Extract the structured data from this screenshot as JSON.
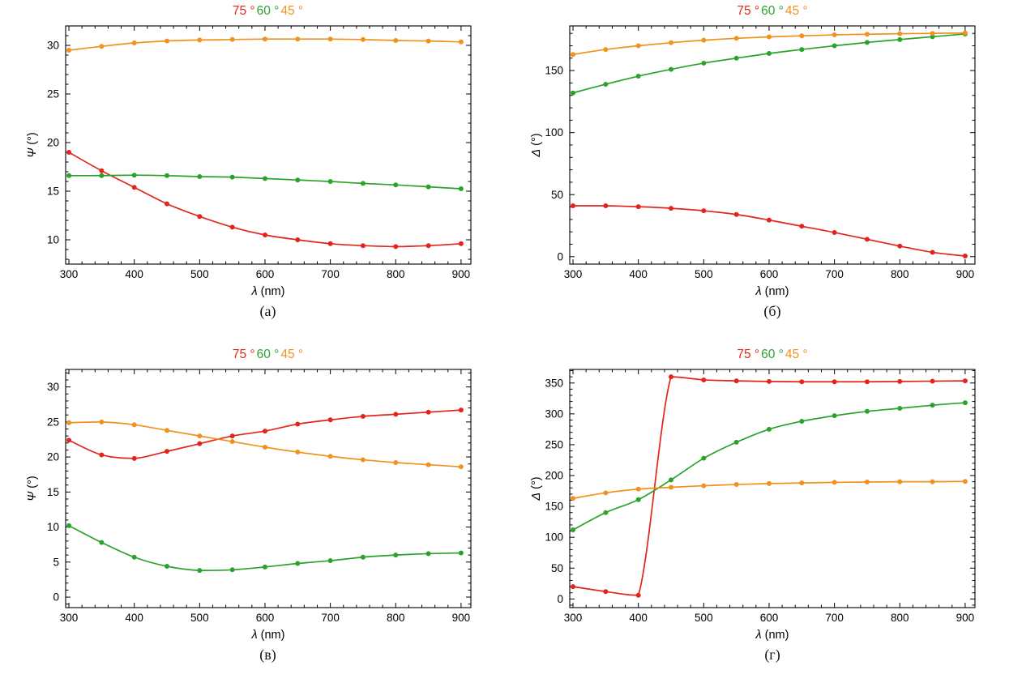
{
  "page": {
    "background": "#ffffff"
  },
  "captions": [
    "(а)",
    "(б)",
    "(в)",
    "(г)"
  ],
  "chart_data": [
    {
      "type": "line",
      "xlabel_symbol": "λ",
      "xlabel_unit": " (nm)",
      "ylabel_symbol": "Ψ",
      "ylabel_unit": " (°)",
      "xlim": [
        295,
        915
      ],
      "ylim": [
        7.5,
        32
      ],
      "xticks": [
        300,
        400,
        500,
        600,
        700,
        800,
        900
      ],
      "xstep": 100,
      "xminor": 20,
      "yticks": [
        10,
        15,
        20,
        25,
        30
      ],
      "ystep": 5,
      "yminor": 1,
      "x": [
        300,
        350,
        400,
        450,
        500,
        550,
        600,
        650,
        700,
        750,
        800,
        850,
        900
      ],
      "series": [
        {
          "name": "75-deg",
          "legend": "75 °",
          "color": "#e2251c",
          "values": [
            19.0,
            17.1,
            15.4,
            13.7,
            12.4,
            11.3,
            10.5,
            10.0,
            9.6,
            9.4,
            9.3,
            9.4,
            9.6
          ]
        },
        {
          "name": "60-deg",
          "legend": "60 °",
          "color": "#2aa32a",
          "values": [
            16.6,
            16.6,
            16.65,
            16.6,
            16.5,
            16.45,
            16.3,
            16.15,
            16.0,
            15.8,
            15.65,
            15.45,
            15.25
          ]
        },
        {
          "name": "45-deg",
          "legend": "45 °",
          "color": "#f0921e",
          "values": [
            29.5,
            29.9,
            30.25,
            30.45,
            30.55,
            30.6,
            30.65,
            30.65,
            30.65,
            30.6,
            30.5,
            30.45,
            30.35
          ]
        }
      ]
    },
    {
      "type": "line",
      "xlabel_symbol": "λ",
      "xlabel_unit": " (nm)",
      "ylabel_symbol": "Δ",
      "ylabel_unit": " (°)",
      "xlim": [
        295,
        915
      ],
      "ylim": [
        -6,
        186
      ],
      "xticks": [
        300,
        400,
        500,
        600,
        700,
        800,
        900
      ],
      "xstep": 100,
      "xminor": 20,
      "yticks": [
        0,
        50,
        100,
        150
      ],
      "ystep": 50,
      "yminor": 10,
      "x": [
        300,
        350,
        400,
        450,
        500,
        550,
        600,
        650,
        700,
        750,
        800,
        850,
        900
      ],
      "series": [
        {
          "name": "75-deg",
          "legend": "75 °",
          "color": "#e2251c",
          "values": [
            41,
            41,
            40.3,
            39,
            37,
            34,
            29.5,
            24.5,
            19.5,
            14,
            8.5,
            3.5,
            0.5
          ]
        },
        {
          "name": "60-deg",
          "legend": "60 °",
          "color": "#2aa32a",
          "values": [
            132,
            139,
            145.5,
            151,
            156,
            160,
            163.8,
            167,
            170,
            172.7,
            175,
            177.3,
            179.5
          ]
        },
        {
          "name": "45-deg",
          "legend": "45 °",
          "color": "#f0921e",
          "values": [
            163,
            167,
            170,
            172.5,
            174.5,
            176,
            177.2,
            178,
            178.8,
            179.3,
            179.7,
            180,
            180.3
          ]
        }
      ]
    },
    {
      "type": "line",
      "xlabel_symbol": "λ",
      "xlabel_unit": " (nm)",
      "ylabel_symbol": "Ψ",
      "ylabel_unit": " (°)",
      "xlim": [
        295,
        915
      ],
      "ylim": [
        -1.5,
        32.5
      ],
      "xticks": [
        300,
        400,
        500,
        600,
        700,
        800,
        900
      ],
      "xstep": 100,
      "xminor": 20,
      "yticks": [
        0,
        5,
        10,
        15,
        20,
        25,
        30
      ],
      "ystep": 5,
      "yminor": 1,
      "x": [
        300,
        350,
        400,
        450,
        500,
        550,
        600,
        650,
        700,
        750,
        800,
        850,
        900
      ],
      "series": [
        {
          "name": "75-deg",
          "legend": "75 °",
          "color": "#e2251c",
          "values": [
            22.4,
            20.3,
            19.8,
            20.8,
            21.9,
            23.0,
            23.7,
            24.7,
            25.3,
            25.8,
            26.1,
            26.4,
            26.7
          ]
        },
        {
          "name": "60-deg",
          "legend": "60 °",
          "color": "#2aa32a",
          "values": [
            10.2,
            7.8,
            5.7,
            4.4,
            3.8,
            3.9,
            4.3,
            4.8,
            5.2,
            5.7,
            6.0,
            6.2,
            6.3
          ]
        },
        {
          "name": "45-deg",
          "legend": "45 °",
          "color": "#f0921e",
          "values": [
            24.9,
            25.0,
            24.6,
            23.8,
            23.0,
            22.2,
            21.4,
            20.7,
            20.1,
            19.6,
            19.2,
            18.9,
            18.6
          ]
        }
      ]
    },
    {
      "type": "line",
      "xlabel_symbol": "λ",
      "xlabel_unit": " (nm)",
      "ylabel_symbol": "Δ",
      "ylabel_unit": " (°)",
      "xlim": [
        295,
        915
      ],
      "ylim": [
        -14,
        372
      ],
      "xticks": [
        300,
        400,
        500,
        600,
        700,
        800,
        900
      ],
      "xstep": 100,
      "xminor": 20,
      "yticks": [
        0,
        50,
        100,
        150,
        200,
        250,
        300,
        350
      ],
      "ystep": 50,
      "yminor": 10,
      "x": [
        300,
        350,
        400,
        450,
        500,
        550,
        600,
        650,
        700,
        750,
        800,
        850,
        900
      ],
      "series": [
        {
          "name": "75-deg",
          "legend": "75 °",
          "color": "#e2251c",
          "values": [
            20,
            12,
            6,
            360,
            355,
            353.5,
            352.5,
            352,
            352,
            352,
            352.5,
            353,
            353.5
          ]
        },
        {
          "name": "60-deg",
          "legend": "60 °",
          "color": "#2aa32a",
          "values": [
            112,
            140,
            161,
            193,
            228,
            254,
            275,
            288,
            297,
            304,
            309,
            314,
            318
          ]
        },
        {
          "name": "45-deg",
          "legend": "45 °",
          "color": "#f0921e",
          "values": [
            163,
            172,
            178,
            181,
            183.5,
            185.5,
            187,
            188,
            189,
            189.5,
            190,
            190,
            190.5
          ]
        }
      ]
    }
  ]
}
